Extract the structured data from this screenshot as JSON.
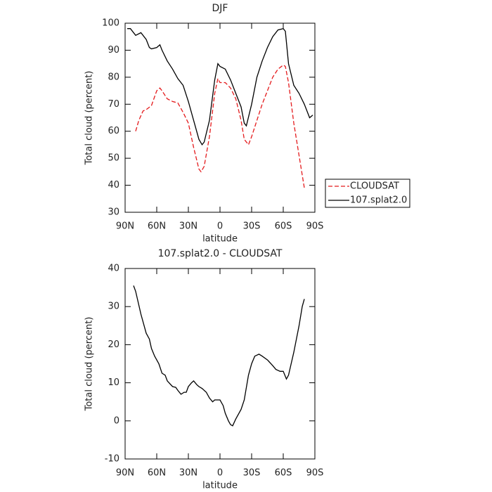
{
  "chart_data": [
    {
      "type": "line",
      "title": "DJF",
      "xlabel": "latitude",
      "ylabel": "Total cloud (percent)",
      "xlim": [
        90,
        -90
      ],
      "xticks": [
        {
          "value": 90,
          "label": "90N"
        },
        {
          "value": 60,
          "label": "60N"
        },
        {
          "value": 30,
          "label": "30N"
        },
        0,
        {
          "value": -30,
          "label": "30S"
        },
        {
          "value": -60,
          "label": "60S"
        },
        {
          "value": -90,
          "label": "90S"
        }
      ],
      "ylim": [
        30,
        100
      ],
      "yticks": [
        30,
        40,
        50,
        60,
        70,
        80,
        90,
        100
      ],
      "legend": "outside-right",
      "series": [
        {
          "name": "CLOUDSAT",
          "color": "#e41a1c",
          "style": "dashed",
          "x": [
            80,
            77,
            73,
            70,
            65,
            60,
            57,
            55,
            50,
            45,
            40,
            35,
            30,
            25,
            20,
            18,
            15,
            10,
            5,
            2,
            0,
            -5,
            -10,
            -15,
            -20,
            -23,
            -27,
            -30,
            -35,
            -40,
            -45,
            -50,
            -55,
            -60,
            -62,
            -65,
            -70,
            -75,
            -80
          ],
          "values": [
            60,
            64,
            67.5,
            68,
            69.5,
            75,
            76,
            75,
            72,
            71,
            70.5,
            67,
            63,
            54,
            46,
            45,
            47,
            58,
            74,
            79.5,
            78,
            78,
            76,
            72,
            64,
            57,
            55,
            58,
            64,
            70,
            75,
            80,
            83,
            84.5,
            84,
            78,
            63,
            51,
            39
          ]
        },
        {
          "name": "107.splat2.0",
          "color": "#000000",
          "style": "solid",
          "x": [
            88,
            85,
            80,
            75,
            70,
            67,
            65,
            60,
            57,
            55,
            50,
            45,
            40,
            35,
            30,
            25,
            20,
            17,
            15,
            10,
            5,
            2,
            0,
            -5,
            -10,
            -15,
            -20,
            -23,
            -25,
            -30,
            -35,
            -40,
            -45,
            -50,
            -55,
            -60,
            -62,
            -65,
            -70,
            -75,
            -80,
            -85,
            -88
          ],
          "values": [
            98,
            98,
            95.5,
            96.5,
            94,
            91,
            90.5,
            91,
            92,
            90,
            86,
            83,
            79.5,
            77,
            71,
            64,
            57,
            55,
            56,
            64,
            79,
            85,
            84,
            83,
            79,
            74,
            69,
            63,
            62,
            70,
            80,
            86,
            91,
            95,
            97.5,
            98,
            97,
            85,
            77,
            74,
            70,
            65,
            66
          ]
        }
      ]
    },
    {
      "type": "line",
      "title": "107.splat2.0 - CLOUDSAT",
      "xlabel": "latitude",
      "ylabel": "Total cloud (percent)",
      "xlim": [
        90,
        -90
      ],
      "xticks": [
        {
          "value": 90,
          "label": "90N"
        },
        {
          "value": 60,
          "label": "60N"
        },
        {
          "value": 30,
          "label": "30N"
        },
        0,
        {
          "value": -30,
          "label": "30S"
        },
        {
          "value": -60,
          "label": "60S"
        },
        {
          "value": -90,
          "label": "90S"
        }
      ],
      "ylim": [
        -10,
        40
      ],
      "yticks": [
        -10,
        0,
        10,
        20,
        30,
        40
      ],
      "color": "#000000",
      "x": [
        82,
        80,
        75,
        70,
        67,
        65,
        62,
        58,
        55,
        52,
        50,
        45,
        42,
        40,
        37,
        34,
        32,
        30,
        27,
        25,
        22,
        20,
        17,
        13,
        10,
        7,
        5,
        0,
        -3,
        -5,
        -8,
        -10,
        -12,
        -15,
        -20,
        -23,
        -27,
        -30,
        -33,
        -37,
        -40,
        -45,
        -50,
        -53,
        -57,
        -60,
        -63,
        -65,
        -70,
        -75,
        -78,
        -80
      ],
      "values": [
        35.5,
        34,
        28,
        23,
        21.5,
        19,
        17,
        15,
        12.5,
        12,
        10.5,
        9,
        8.8,
        8,
        7,
        7.5,
        7.5,
        9,
        10,
        10.5,
        9.5,
        9,
        8.5,
        7.5,
        6,
        5,
        5.5,
        5.5,
        4,
        2,
        0,
        -1,
        -1.3,
        0.5,
        3,
        5.5,
        12,
        15,
        17,
        17.5,
        17,
        16,
        14.5,
        13.5,
        13,
        13,
        11,
        12,
        18,
        25,
        30,
        32
      ]
    }
  ]
}
